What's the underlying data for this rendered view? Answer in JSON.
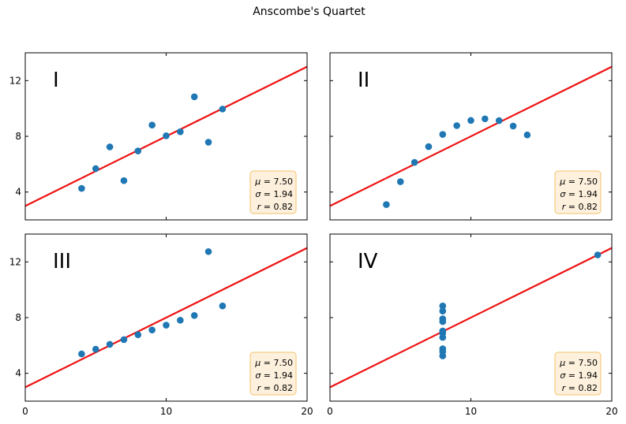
{
  "title": "Anscombe's Quartet",
  "colors": {
    "points": "#1f77b4",
    "fit_line": "#ee1111",
    "stats_box_fill": "#fdf0dc",
    "stats_box_edge": "#f5c26b",
    "frame": "#000000"
  },
  "chart_data": [
    {
      "type": "scatter",
      "label": "I",
      "xlim": [
        0,
        20
      ],
      "ylim": [
        2,
        14
      ],
      "xticks": [
        0,
        10,
        20
      ],
      "yticks": [
        4,
        8,
        12
      ],
      "xticklabels_shown": false,
      "yticklabels_shown": true,
      "x": [
        10,
        8,
        13,
        9,
        11,
        14,
        6,
        4,
        12,
        7,
        5
      ],
      "y": [
        8.04,
        6.95,
        7.58,
        8.81,
        8.33,
        9.96,
        7.24,
        4.26,
        10.84,
        4.82,
        5.68
      ],
      "fit": {
        "intercept": 3,
        "slope": 0.5
      },
      "stats": {
        "mu": "7.50",
        "sigma": "1.94",
        "r": "0.82"
      }
    },
    {
      "type": "scatter",
      "label": "II",
      "xlim": [
        0,
        20
      ],
      "ylim": [
        2,
        14
      ],
      "xticks": [
        0,
        10,
        20
      ],
      "yticks": [
        4,
        8,
        12
      ],
      "xticklabels_shown": false,
      "yticklabels_shown": false,
      "x": [
        10,
        8,
        13,
        9,
        11,
        14,
        6,
        4,
        12,
        7,
        5
      ],
      "y": [
        9.14,
        8.14,
        8.74,
        8.77,
        9.26,
        8.1,
        6.13,
        3.1,
        9.13,
        7.26,
        4.74
      ],
      "fit": {
        "intercept": 3,
        "slope": 0.5
      },
      "stats": {
        "mu": "7.50",
        "sigma": "1.94",
        "r": "0.82"
      }
    },
    {
      "type": "scatter",
      "label": "III",
      "xlim": [
        0,
        20
      ],
      "ylim": [
        2,
        14
      ],
      "xticks": [
        0,
        10,
        20
      ],
      "yticks": [
        4,
        8,
        12
      ],
      "xticklabels_shown": true,
      "yticklabels_shown": true,
      "x": [
        10,
        8,
        13,
        9,
        11,
        14,
        6,
        4,
        12,
        7,
        5
      ],
      "y": [
        7.46,
        6.77,
        12.74,
        7.11,
        7.81,
        8.84,
        6.08,
        5.39,
        8.15,
        6.42,
        5.73
      ],
      "fit": {
        "intercept": 3,
        "slope": 0.5
      },
      "stats": {
        "mu": "7.50",
        "sigma": "1.94",
        "r": "0.82"
      }
    },
    {
      "type": "scatter",
      "label": "IV",
      "xlim": [
        0,
        20
      ],
      "ylim": [
        2,
        14
      ],
      "xticks": [
        0,
        10,
        20
      ],
      "yticks": [
        4,
        8,
        12
      ],
      "xticklabels_shown": true,
      "yticklabels_shown": false,
      "x": [
        8,
        8,
        8,
        8,
        8,
        8,
        8,
        19,
        8,
        8,
        8
      ],
      "y": [
        6.58,
        5.76,
        7.71,
        8.84,
        8.47,
        7.04,
        5.25,
        12.5,
        5.56,
        7.91,
        6.89
      ],
      "fit": {
        "intercept": 3,
        "slope": 0.5
      },
      "stats": {
        "mu": "7.50",
        "sigma": "1.94",
        "r": "0.82"
      }
    }
  ]
}
